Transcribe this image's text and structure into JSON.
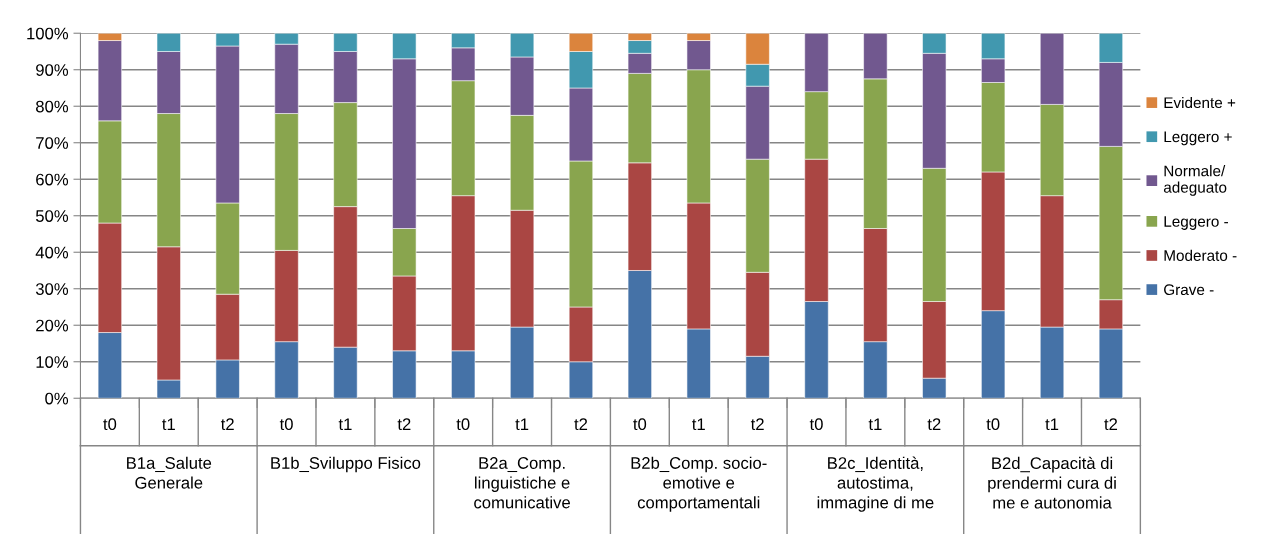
{
  "chart_data": {
    "type": "bar",
    "stacked": true,
    "categories": [
      "t0",
      "t1",
      "t2",
      "t0",
      "t1",
      "t2",
      "t0",
      "t1",
      "t2",
      "t0",
      "t1",
      "t2",
      "t0",
      "t1",
      "t2",
      "t0",
      "t1",
      "t2"
    ],
    "annotations": [
      "B1a_Salute\nGenerale",
      "B1b_Sviluppo Fisico",
      "B2a_Comp.\nlinguistiche e\ncomunicative",
      "B2b_Comp. socio-\nemotive e\ncomportamentali",
      "B2c_Identità,\nautostima,\nimmagine di me",
      "B2d_Capacità di\nprendermi cura di\nme e autonomia"
    ],
    "series": [
      {
        "name": "Grave -",
        "color": "#4572a7",
        "values": [
          18,
          5,
          10.5,
          15.5,
          14,
          13,
          13,
          19.5,
          10,
          35,
          19,
          11.5,
          26.5,
          15.5,
          5.5,
          24,
          19.5,
          19
        ]
      },
      {
        "name": "Moderato -",
        "color": "#aa4643",
        "values": [
          30,
          36.5,
          18,
          25,
          38.5,
          20.5,
          42.5,
          32,
          15,
          29.5,
          34.5,
          23,
          39,
          31,
          21,
          38,
          36,
          8
        ]
      },
      {
        "name": "Leggero -",
        "color": "#89a54e",
        "values": [
          28,
          36.5,
          25,
          37.5,
          28.5,
          13,
          31.5,
          26,
          40,
          24.5,
          36.5,
          31,
          18.5,
          41,
          36.5,
          24.5,
          25,
          42
        ]
      },
      {
        "name": "Normale/\nadeguato",
        "color": "#71588f",
        "values": [
          22,
          17,
          43,
          19,
          14,
          46.5,
          9,
          16,
          20,
          5.5,
          8,
          20,
          16,
          12.5,
          31.5,
          6.5,
          19.5,
          23
        ]
      },
      {
        "name": "Leggero +",
        "color": "#4198af",
        "values": [
          0,
          5,
          3.5,
          3,
          5,
          7,
          4,
          6.5,
          10,
          3.5,
          0,
          6,
          0,
          0,
          5.5,
          7,
          0,
          8
        ]
      },
      {
        "name": "Evidente +",
        "color": "#db843d",
        "values": [
          2,
          0,
          0,
          0,
          0,
          0,
          0,
          0,
          5,
          2,
          2,
          8.5,
          0,
          0,
          0,
          0,
          0,
          0
        ]
      }
    ],
    "ylim": [
      0,
      100
    ],
    "yticks": [
      {
        "value": 0,
        "label": "0%"
      },
      {
        "value": 10,
        "label": "10%"
      },
      {
        "value": 20,
        "label": "20%"
      },
      {
        "value": 30,
        "label": "30%"
      },
      {
        "value": 40,
        "label": "40%"
      },
      {
        "value": 50,
        "label": "50%"
      },
      {
        "value": 60,
        "label": "60%"
      },
      {
        "value": 70,
        "label": "70%"
      },
      {
        "value": 80,
        "label": "80%"
      },
      {
        "value": 90,
        "label": "90%"
      },
      {
        "value": 100,
        "label": "100%"
      }
    ],
    "grid": "y",
    "legend": "right"
  }
}
